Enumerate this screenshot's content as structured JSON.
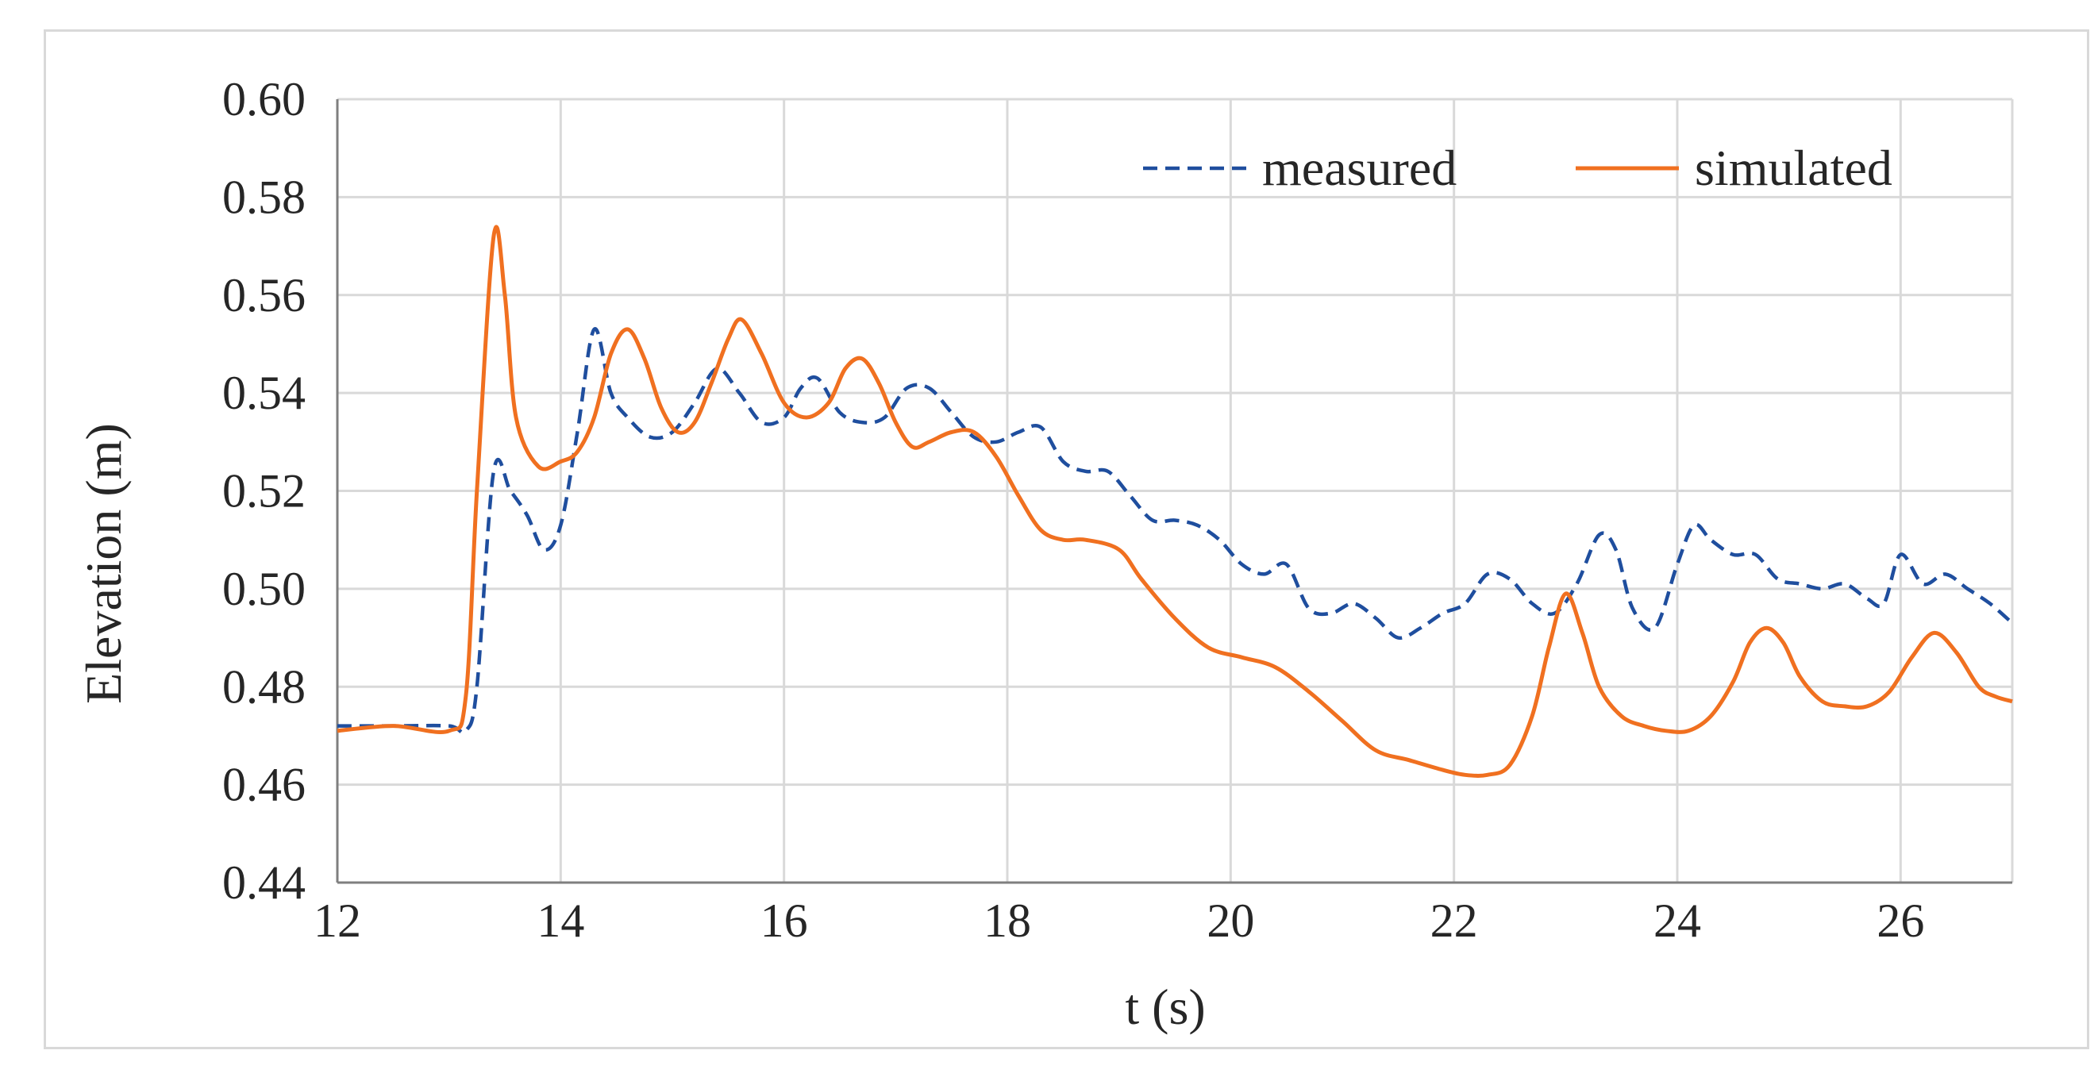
{
  "chart_data": {
    "type": "line",
    "title": "",
    "xlabel": "t (s)",
    "ylabel": "Elevation (m)",
    "xlim": [
      12,
      27
    ],
    "ylim": [
      0.44,
      0.6
    ],
    "xticks": [
      12,
      14,
      16,
      18,
      20,
      22,
      24,
      26
    ],
    "xtick_labels": [
      "12",
      "14",
      "16",
      "18",
      "20",
      "22",
      "24",
      "26"
    ],
    "yticks": [
      0.44,
      0.46,
      0.48,
      0.5,
      0.52,
      0.54,
      0.56,
      0.58,
      0.6
    ],
    "ytick_labels": [
      "0.44",
      "0.46",
      "0.48",
      "0.50",
      "0.52",
      "0.54",
      "0.56",
      "0.58",
      "0.60"
    ],
    "grid": true,
    "legend_position": "top-right",
    "series": [
      {
        "name": "measured",
        "style": "dashed",
        "color": "#1f4e9e",
        "x": [
          12.0,
          12.5,
          13.0,
          13.15,
          13.25,
          13.4,
          13.55,
          13.7,
          13.85,
          14.0,
          14.15,
          14.3,
          14.45,
          14.6,
          14.8,
          15.0,
          15.2,
          15.4,
          15.6,
          15.8,
          16.0,
          16.15,
          16.3,
          16.5,
          16.7,
          16.9,
          17.1,
          17.3,
          17.5,
          17.7,
          17.9,
          18.1,
          18.3,
          18.5,
          18.7,
          18.9,
          19.1,
          19.3,
          19.5,
          19.7,
          19.9,
          20.1,
          20.3,
          20.5,
          20.7,
          20.9,
          21.1,
          21.3,
          21.5,
          21.7,
          21.9,
          22.1,
          22.3,
          22.5,
          22.7,
          22.9,
          23.1,
          23.3,
          23.45,
          23.6,
          23.8,
          24.0,
          24.15,
          24.3,
          24.5,
          24.7,
          24.9,
          25.1,
          25.3,
          25.5,
          25.7,
          25.85,
          26.0,
          26.2,
          26.4,
          26.6,
          26.8,
          27.0
        ],
        "y": [
          0.472,
          0.472,
          0.472,
          0.471,
          0.48,
          0.524,
          0.52,
          0.515,
          0.508,
          0.513,
          0.532,
          0.553,
          0.54,
          0.535,
          0.531,
          0.532,
          0.538,
          0.545,
          0.54,
          0.534,
          0.535,
          0.541,
          0.543,
          0.536,
          0.534,
          0.535,
          0.541,
          0.541,
          0.536,
          0.531,
          0.53,
          0.532,
          0.533,
          0.526,
          0.524,
          0.524,
          0.519,
          0.514,
          0.514,
          0.513,
          0.51,
          0.505,
          0.503,
          0.505,
          0.496,
          0.495,
          0.497,
          0.494,
          0.49,
          0.492,
          0.495,
          0.497,
          0.503,
          0.502,
          0.497,
          0.495,
          0.501,
          0.511,
          0.508,
          0.496,
          0.492,
          0.505,
          0.513,
          0.51,
          0.507,
          0.507,
          0.502,
          0.501,
          0.5,
          0.501,
          0.498,
          0.497,
          0.507,
          0.501,
          0.503,
          0.5,
          0.497,
          0.493
        ]
      },
      {
        "name": "simulated",
        "style": "solid",
        "color": "#f07020",
        "x": [
          12.0,
          12.5,
          13.0,
          13.15,
          13.25,
          13.4,
          13.5,
          13.6,
          13.8,
          14.0,
          14.15,
          14.3,
          14.45,
          14.6,
          14.75,
          14.9,
          15.05,
          15.2,
          15.35,
          15.5,
          15.62,
          15.8,
          16.0,
          16.2,
          16.4,
          16.55,
          16.7,
          16.85,
          17.0,
          17.15,
          17.3,
          17.5,
          17.7,
          17.9,
          18.1,
          18.3,
          18.5,
          18.7,
          19.0,
          19.2,
          19.5,
          19.8,
          20.1,
          20.4,
          20.7,
          21.0,
          21.3,
          21.6,
          21.9,
          22.1,
          22.3,
          22.5,
          22.7,
          22.85,
          23.0,
          23.15,
          23.3,
          23.5,
          23.7,
          23.9,
          24.1,
          24.3,
          24.5,
          24.65,
          24.8,
          24.95,
          25.1,
          25.3,
          25.5,
          25.7,
          25.9,
          26.1,
          26.3,
          26.5,
          26.7,
          26.85,
          27.0
        ],
        "y": [
          0.471,
          0.472,
          0.471,
          0.478,
          0.52,
          0.572,
          0.56,
          0.535,
          0.525,
          0.526,
          0.528,
          0.535,
          0.548,
          0.553,
          0.547,
          0.537,
          0.532,
          0.534,
          0.542,
          0.551,
          0.555,
          0.548,
          0.538,
          0.535,
          0.538,
          0.545,
          0.547,
          0.542,
          0.534,
          0.529,
          0.53,
          0.532,
          0.532,
          0.527,
          0.519,
          0.512,
          0.51,
          0.51,
          0.508,
          0.502,
          0.494,
          0.488,
          0.486,
          0.484,
          0.479,
          0.473,
          0.467,
          0.465,
          0.463,
          0.462,
          0.462,
          0.464,
          0.474,
          0.488,
          0.499,
          0.491,
          0.48,
          0.474,
          0.472,
          0.471,
          0.471,
          0.474,
          0.481,
          0.489,
          0.492,
          0.489,
          0.482,
          0.477,
          0.476,
          0.476,
          0.479,
          0.486,
          0.491,
          0.487,
          0.48,
          0.478,
          0.477
        ]
      }
    ]
  }
}
